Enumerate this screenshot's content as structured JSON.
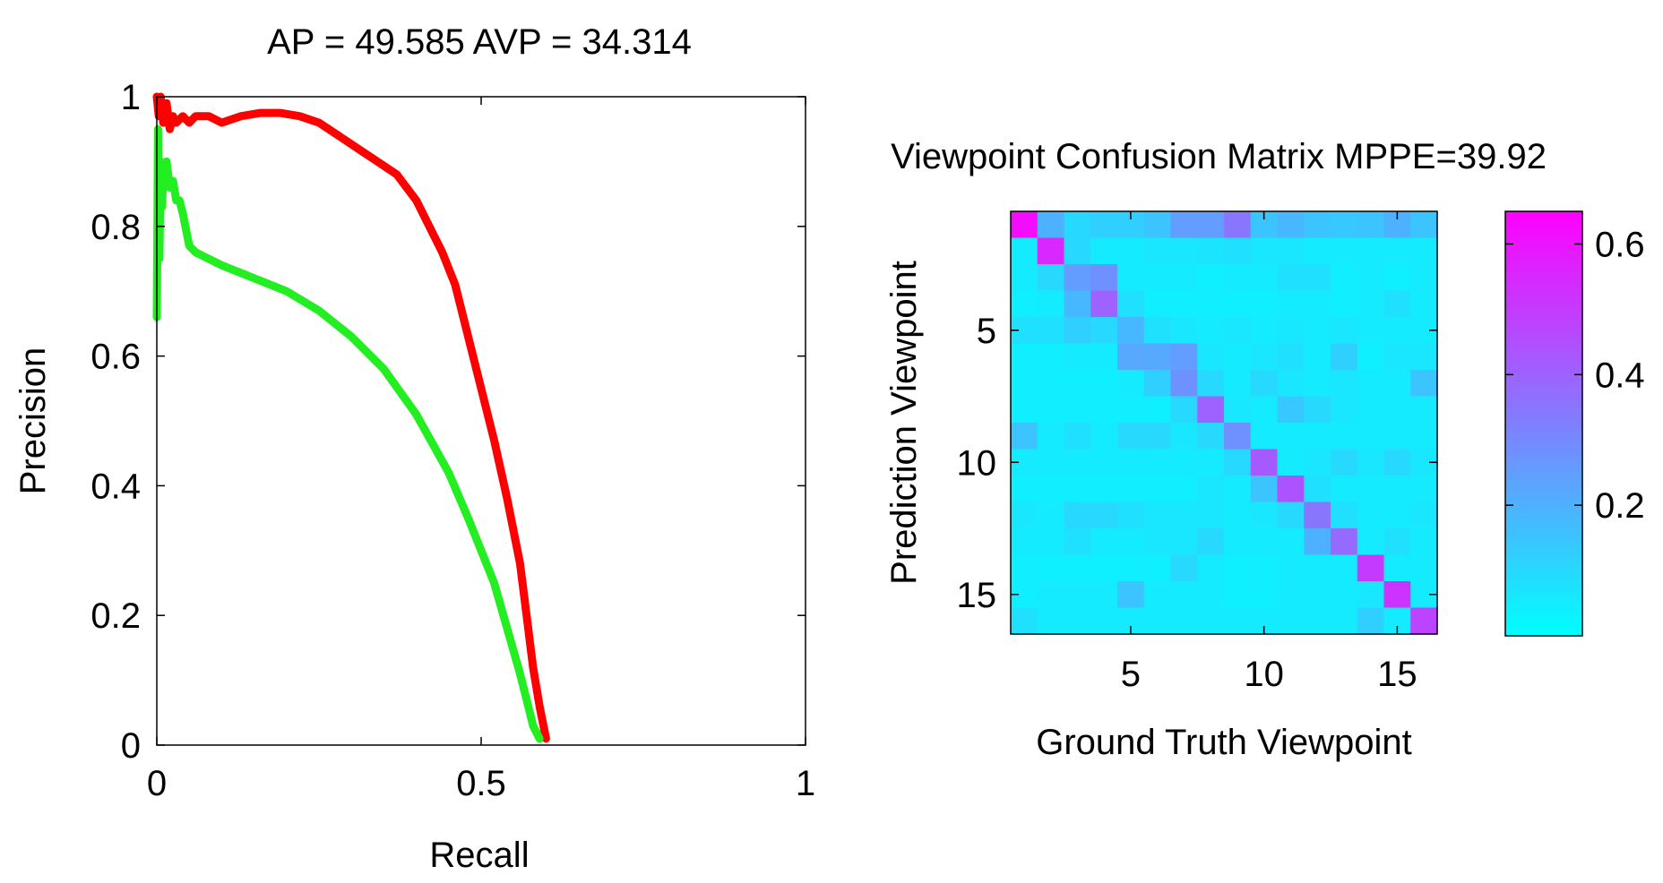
{
  "chart_data": [
    {
      "type": "line",
      "title": "AP = 49.585 AVP = 34.314",
      "xlabel": "Recall",
      "ylabel": "Precision",
      "xlim": [
        0,
        1
      ],
      "ylim": [
        0,
        1
      ],
      "x_ticks": [
        0,
        0.5,
        1
      ],
      "x_tick_labels": [
        "0",
        "0.5",
        "1"
      ],
      "y_ticks": [
        0,
        0.2,
        0.4,
        0.6,
        0.8,
        1
      ],
      "y_tick_labels": [
        "0",
        "0.2",
        "0.4",
        "0.6",
        "0.8",
        "1"
      ],
      "grid": false,
      "legend": "none",
      "series": [
        {
          "color": "#ff0000",
          "x": [
            0.0,
            0.003,
            0.006,
            0.01,
            0.015,
            0.02,
            0.025,
            0.03,
            0.04,
            0.05,
            0.06,
            0.08,
            0.1,
            0.13,
            0.16,
            0.19,
            0.22,
            0.25,
            0.28,
            0.31,
            0.34,
            0.37,
            0.4,
            0.42,
            0.44,
            0.46,
            0.48,
            0.5,
            0.52,
            0.54,
            0.56,
            0.57,
            0.58,
            0.59,
            0.6
          ],
          "y": [
            1.0,
            0.97,
            1.0,
            0.96,
            0.99,
            0.95,
            0.97,
            0.96,
            0.97,
            0.96,
            0.97,
            0.97,
            0.96,
            0.97,
            0.975,
            0.975,
            0.97,
            0.96,
            0.94,
            0.92,
            0.9,
            0.88,
            0.84,
            0.8,
            0.76,
            0.71,
            0.63,
            0.55,
            0.47,
            0.38,
            0.28,
            0.2,
            0.12,
            0.06,
            0.01
          ]
        },
        {
          "color": "#22ee22",
          "x": [
            0.0,
            0.002,
            0.004,
            0.006,
            0.008,
            0.01,
            0.015,
            0.02,
            0.025,
            0.03,
            0.035,
            0.04,
            0.05,
            0.06,
            0.08,
            0.1,
            0.15,
            0.2,
            0.25,
            0.3,
            0.35,
            0.4,
            0.45,
            0.48,
            0.5,
            0.52,
            0.54,
            0.56,
            0.57,
            0.58,
            0.59
          ],
          "y": [
            0.66,
            0.95,
            0.75,
            0.9,
            0.83,
            0.88,
            0.9,
            0.86,
            0.87,
            0.84,
            0.84,
            0.82,
            0.77,
            0.76,
            0.75,
            0.74,
            0.72,
            0.7,
            0.67,
            0.63,
            0.58,
            0.51,
            0.42,
            0.35,
            0.3,
            0.25,
            0.18,
            0.11,
            0.07,
            0.03,
            0.01
          ]
        }
      ]
    },
    {
      "type": "heatmap",
      "title": "Viewpoint Confusion Matrix MPPE=39.92",
      "xlabel": "Ground Truth Viewpoint",
      "ylabel": "Prediction Viewpoint",
      "x_ticks": [
        5,
        10,
        15
      ],
      "x_tick_labels": [
        "5",
        "10",
        "15"
      ],
      "y_ticks": [
        5,
        10,
        15
      ],
      "y_tick_labels": [
        "5",
        "10",
        "15"
      ],
      "colormap": "cool",
      "low_color": "#00ffff",
      "high_color": "#ff00ff",
      "clim": [
        0,
        0.65
      ],
      "colorbar_ticks": [
        0.2,
        0.4,
        0.6
      ],
      "colorbar_tick_labels": [
        "0.2",
        "0.4",
        "0.6"
      ],
      "matrix": [
        [
          0.62,
          0.2,
          0.1,
          0.12,
          0.12,
          0.15,
          0.25,
          0.25,
          0.35,
          0.15,
          0.18,
          0.15,
          0.14,
          0.15,
          0.2,
          0.15
        ],
        [
          0.05,
          0.55,
          0.1,
          0.05,
          0.05,
          0.06,
          0.06,
          0.07,
          0.08,
          0.06,
          0.06,
          0.05,
          0.05,
          0.05,
          0.05,
          0.05
        ],
        [
          0.05,
          0.1,
          0.25,
          0.28,
          0.05,
          0.05,
          0.05,
          0.04,
          0.05,
          0.05,
          0.08,
          0.08,
          0.04,
          0.05,
          0.04,
          0.05
        ],
        [
          0.04,
          0.05,
          0.18,
          0.4,
          0.08,
          0.04,
          0.04,
          0.04,
          0.04,
          0.04,
          0.05,
          0.05,
          0.04,
          0.05,
          0.08,
          0.05
        ],
        [
          0.08,
          0.08,
          0.12,
          0.1,
          0.18,
          0.08,
          0.06,
          0.05,
          0.06,
          0.05,
          0.06,
          0.05,
          0.06,
          0.05,
          0.05,
          0.05
        ],
        [
          0.04,
          0.04,
          0.05,
          0.05,
          0.22,
          0.22,
          0.25,
          0.06,
          0.05,
          0.06,
          0.08,
          0.05,
          0.12,
          0.04,
          0.06,
          0.06
        ],
        [
          0.04,
          0.04,
          0.04,
          0.04,
          0.05,
          0.12,
          0.28,
          0.1,
          0.05,
          0.1,
          0.06,
          0.05,
          0.06,
          0.05,
          0.05,
          0.15
        ],
        [
          0.04,
          0.04,
          0.04,
          0.04,
          0.04,
          0.04,
          0.1,
          0.4,
          0.06,
          0.05,
          0.14,
          0.1,
          0.06,
          0.05,
          0.05,
          0.05
        ],
        [
          0.15,
          0.05,
          0.08,
          0.05,
          0.1,
          0.1,
          0.06,
          0.1,
          0.28,
          0.05,
          0.05,
          0.05,
          0.05,
          0.05,
          0.05,
          0.05
        ],
        [
          0.05,
          0.05,
          0.05,
          0.05,
          0.05,
          0.05,
          0.05,
          0.05,
          0.1,
          0.42,
          0.05,
          0.06,
          0.1,
          0.06,
          0.1,
          0.06
        ],
        [
          0.04,
          0.04,
          0.04,
          0.04,
          0.04,
          0.04,
          0.04,
          0.06,
          0.05,
          0.15,
          0.44,
          0.08,
          0.05,
          0.05,
          0.05,
          0.05
        ],
        [
          0.06,
          0.05,
          0.1,
          0.1,
          0.08,
          0.06,
          0.06,
          0.06,
          0.05,
          0.06,
          0.1,
          0.35,
          0.08,
          0.05,
          0.05,
          0.06
        ],
        [
          0.05,
          0.05,
          0.08,
          0.05,
          0.05,
          0.06,
          0.06,
          0.1,
          0.05,
          0.05,
          0.05,
          0.2,
          0.38,
          0.05,
          0.08,
          0.05
        ],
        [
          0.04,
          0.04,
          0.04,
          0.04,
          0.04,
          0.04,
          0.1,
          0.05,
          0.04,
          0.04,
          0.05,
          0.05,
          0.05,
          0.5,
          0.05,
          0.05
        ],
        [
          0.04,
          0.05,
          0.05,
          0.05,
          0.15,
          0.05,
          0.05,
          0.05,
          0.04,
          0.04,
          0.05,
          0.05,
          0.05,
          0.06,
          0.52,
          0.05
        ],
        [
          0.08,
          0.05,
          0.05,
          0.05,
          0.05,
          0.05,
          0.05,
          0.05,
          0.05,
          0.05,
          0.05,
          0.05,
          0.05,
          0.12,
          0.05,
          0.48
        ]
      ]
    }
  ]
}
